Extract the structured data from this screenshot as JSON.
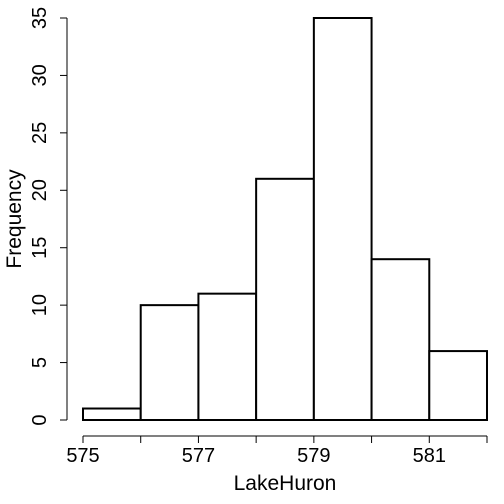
{
  "chart_data": {
    "type": "bar",
    "title": "",
    "xlabel": "LakeHuron",
    "ylabel": "Frequency",
    "bins": [
      {
        "from": 575,
        "to": 576,
        "count": 1
      },
      {
        "from": 576,
        "to": 577,
        "count": 10
      },
      {
        "from": 577,
        "to": 578,
        "count": 11
      },
      {
        "from": 578,
        "to": 579,
        "count": 21
      },
      {
        "from": 579,
        "to": 580,
        "count": 35
      },
      {
        "from": 580,
        "to": 581,
        "count": 14
      },
      {
        "from": 581,
        "to": 582,
        "count": 6
      }
    ],
    "xlim": [
      575,
      582
    ],
    "ylim": [
      0,
      35
    ],
    "x_ticks": [
      575,
      576,
      577,
      578,
      579,
      580,
      581,
      582
    ],
    "x_tick_labels": [
      "575",
      "577",
      "579",
      "581"
    ],
    "y_ticks": [
      0,
      5,
      10,
      15,
      20,
      25,
      30,
      35
    ],
    "grid": false,
    "colors": {
      "bar_fill": "#ffffff",
      "bar_stroke": "#000000"
    }
  }
}
